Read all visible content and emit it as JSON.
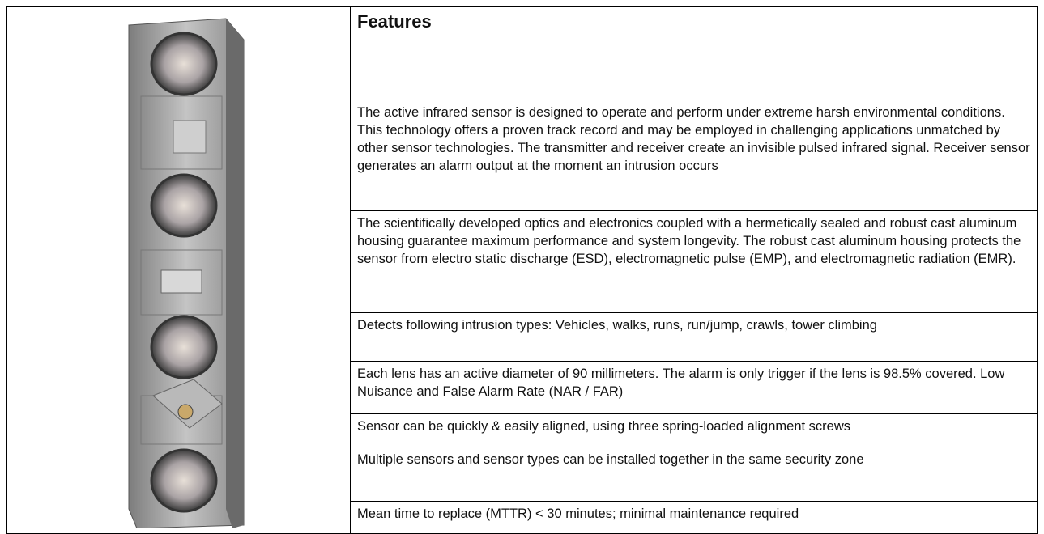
{
  "features": {
    "title": "Features",
    "rows": [
      "The active infrared sensor is designed to operate and perform under extreme harsh environmental conditions. This technology offers a proven track record and may be employed in challenging applications unmatched by other sensor technologies. The transmitter and receiver create an invisible pulsed infrared signal. Receiver sensor generates an alarm output at the moment an intrusion occurs",
      "The scientifically developed optics and electronics coupled with a hermetically sealed and robust cast aluminum housing guarantee maximum performance and system longevity. The robust cast aluminum housing protects the sensor from electro static discharge (ESD), electromagnetic pulse (EMP), and electromagnetic radiation (EMR).",
      "Detects following intrusion types: Vehicles, walks, runs, run/jump, crawls, tower climbing",
      "Each lens has an active diameter of 90 millimeters. The alarm is only trigger if the lens is 98.5% covered. Low Nuisance and False Alarm Rate (NAR / FAR)",
      "Sensor can be quickly & easily aligned, using three spring-loaded alignment screws",
      "Multiple sensors and sensor types can be installed together in the same security zone",
      "Mean time to replace (MTTR) < 30 minutes; minimal maintenance required"
    ]
  }
}
